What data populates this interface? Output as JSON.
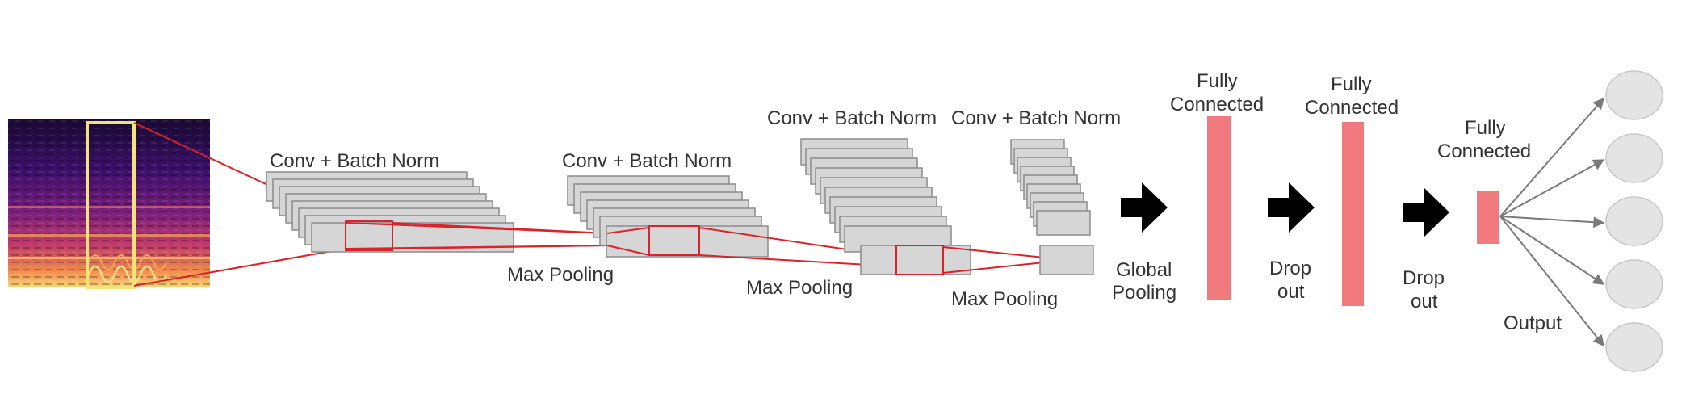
{
  "labels": {
    "conv1": "Conv + Batch Norm",
    "conv2": "Conv + Batch Norm",
    "conv3": "Conv + Batch Norm",
    "conv4": "Conv + Batch Norm",
    "pool1": "Max Pooling",
    "pool2": "Max Pooling",
    "pool3": "Max Pooling",
    "global_pool_line1": "Global",
    "global_pool_line2": "Pooling",
    "fc1_line1": "Fully",
    "fc1_line2": "Connected",
    "fc2_line1": "Fully",
    "fc2_line2": "Connected",
    "fc3_line1": "Fully",
    "fc3_line2": "Connected",
    "dropout1_line1": "Drop",
    "dropout1_line2": "out",
    "dropout2_line1": "Drop",
    "dropout2_line2": "out",
    "output": "Output"
  },
  "output_neurons": 5,
  "colors": {
    "fully_connected": "#f07a7e",
    "window_highlight": "#f2e47a",
    "receptive_field": "#d9232a",
    "feature_map": "#d6d6d6"
  }
}
